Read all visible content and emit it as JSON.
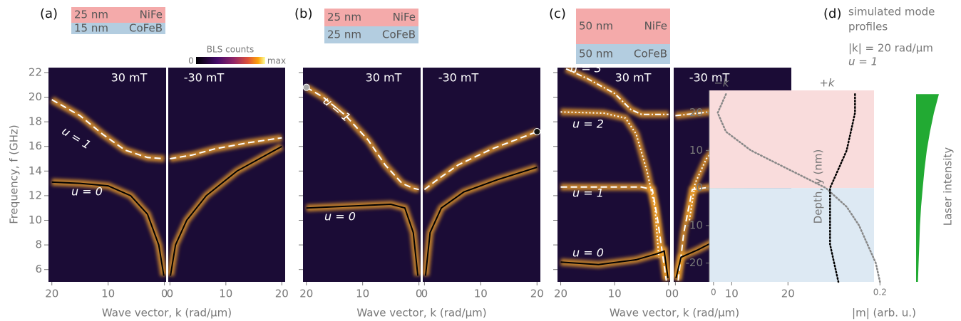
{
  "chart_data": [
    {
      "type": "line",
      "panel": "(a)",
      "layers": [
        {
          "thickness": "25 nm",
          "material": "NiFe",
          "color": "#f4aaaa"
        },
        {
          "thickness": "15 nm",
          "material": "CoFeB",
          "color": "#b3cde0"
        }
      ],
      "colorbar": {
        "title": "BLS counts",
        "low": "0",
        "high": "max"
      },
      "ylabel": "Frequency, f (GHz)",
      "xlabel": "Wave vector, k (rad/μm)",
      "ylim": [
        5,
        22.4
      ],
      "yticks": [
        6,
        8,
        10,
        12,
        14,
        16,
        18,
        20,
        22
      ],
      "ytick_labels": true,
      "subplots": [
        {
          "title": "30 mT",
          "xlim": [
            20.6,
            -0.3
          ],
          "xticks": [
            20,
            10,
            0
          ],
          "series": [
            {
              "name": "u = 1",
              "color": "#ffffff",
              "dash": "dashed",
              "x": [
                20,
                15,
                11,
                7,
                3,
                0
              ],
              "values": [
                19.8,
                18.5,
                17,
                15.7,
                15.1,
                15.0
              ]
            },
            {
              "name": "u = 0",
              "color": "#000000",
              "dash": "solid",
              "x": [
                20,
                15,
                10,
                6,
                3,
                1,
                0.1
              ],
              "values": [
                13.1,
                13.0,
                12.8,
                12.0,
                10.5,
                8,
                5.5
              ]
            }
          ]
        },
        {
          "title": "-30 mT",
          "xlim": [
            -0.3,
            20.6
          ],
          "xticks": [
            0,
            10,
            20
          ],
          "series": [
            {
              "color": "#ffffff",
              "dash": "dashed",
              "x": [
                0,
                4,
                8,
                14,
                20
              ],
              "values": [
                15.0,
                15.3,
                15.8,
                16.3,
                16.7
              ]
            },
            {
              "color": "#000000",
              "dash": "solid",
              "x": [
                0.1,
                1,
                3,
                6.5,
                12,
                20
              ],
              "values": [
                5.5,
                8,
                10,
                12,
                14,
                16
              ]
            }
          ]
        }
      ]
    },
    {
      "type": "line",
      "panel": "(b)",
      "layers": [
        {
          "thickness": "25 nm",
          "material": "NiFe",
          "color": "#f4aaaa"
        },
        {
          "thickness": "25 nm",
          "material": "CoFeB",
          "color": "#b3cde0"
        }
      ],
      "xlabel": "Wave vector, k (rad/μm)",
      "ylim": [
        5,
        22.4
      ],
      "yticks": [
        6,
        8,
        10,
        12,
        14,
        16,
        18,
        20,
        22
      ],
      "ytick_labels": false,
      "subplots": [
        {
          "title": "30 mT",
          "xlim": [
            20.6,
            -0.3
          ],
          "xticks": [
            20,
            10,
            0
          ],
          "series": [
            {
              "name": "u = 1",
              "color": "#ffffff",
              "dash": "dashed",
              "end_marker": "#aaaaaa",
              "x": [
                20,
                17,
                13,
                9,
                6,
                3,
                1,
                0
              ],
              "values": [
                20.8,
                20,
                18.5,
                16.5,
                14.5,
                13,
                12.6,
                12.5
              ]
            },
            {
              "name": "u = 0",
              "color": "#000000",
              "dash": "solid",
              "x": [
                20,
                15,
                10,
                5,
                2.5,
                1,
                0.2
              ],
              "values": [
                11.0,
                11.1,
                11.2,
                11.3,
                11.0,
                9,
                5.5
              ]
            }
          ]
        },
        {
          "title": "-30 mT",
          "xlim": [
            -0.3,
            20.6
          ],
          "xticks": [
            0,
            10,
            20
          ],
          "series": [
            {
              "color": "#ffffff",
              "dash": "dashed",
              "end_marker": "#111111",
              "x": [
                0,
                2,
                6,
                12,
                20
              ],
              "values": [
                12.5,
                13.2,
                14.5,
                15.8,
                17.2
              ]
            },
            {
              "color": "#000000",
              "dash": "solid",
              "x": [
                0.2,
                1,
                3,
                7,
                13,
                20
              ],
              "values": [
                5.5,
                9,
                11,
                12.3,
                13.3,
                14.3
              ]
            }
          ]
        }
      ]
    },
    {
      "type": "line",
      "panel": "(c)",
      "layers": [
        {
          "thickness": "50 nm",
          "material": "NiFe",
          "color": "#f4aaaa"
        },
        {
          "thickness": "50 nm",
          "material": "CoFeB",
          "color": "#b3cde0"
        }
      ],
      "xlabel": "Wave vector, k (rad/μm)",
      "ylim": [
        5,
        22.4
      ],
      "yticks": [
        6,
        8,
        10,
        12,
        14,
        16,
        18,
        20,
        22
      ],
      "ytick_labels": false,
      "subplots": [
        {
          "title": "30 mT",
          "xlim": [
            20.6,
            -0.3
          ],
          "xticks": [
            20,
            10,
            0
          ],
          "series": [
            {
              "name": "u = 3",
              "color": "#ffffff",
              "dash": "dashdot",
              "x": [
                19,
                15,
                10,
                7,
                5,
                0
              ],
              "values": [
                22.3,
                21.5,
                20.3,
                19.0,
                18.6,
                18.6
              ]
            },
            {
              "name": "u = 2",
              "color": "#ffffff",
              "dash": "dotted",
              "x": [
                20,
                12,
                8,
                6,
                4,
                2.5,
                1.8
              ],
              "values": [
                18.8,
                18.7,
                18.3,
                17,
                14,
                11,
                7
              ]
            },
            {
              "name": "u = 1",
              "color": "#ffffff",
              "dash": "dashed",
              "x": [
                20,
                10,
                5,
                3,
                2,
                0.7,
                0.4
              ],
              "values": [
                12.7,
                12.7,
                12.7,
                12.5,
                10,
                6,
                5.1
              ]
            },
            {
              "name": "u = 0",
              "color": "#000000",
              "dash": "solid",
              "x": [
                20,
                13,
                6,
                2,
                0.8,
                0.1
              ],
              "values": [
                6.6,
                6.4,
                6.8,
                7.3,
                7.5,
                5.3
              ]
            }
          ]
        },
        {
          "title": "-30 mT",
          "xlim": [
            -0.3,
            20.6
          ],
          "xticks": [
            0,
            10,
            20
          ],
          "series": [
            {
              "color": "#ffffff",
              "dash": "dashdot",
              "x": [
                0,
                6,
                13,
                20
              ],
              "values": [
                18.5,
                18.8,
                19.5,
                20.0
              ]
            },
            {
              "color": "#ffffff",
              "dash": "dotted",
              "x": [
                2.5,
                3.5,
                5.5,
                8,
                12,
                20
              ],
              "values": [
                10,
                13,
                15,
                16.3,
                16.6,
                16.5
              ]
            },
            {
              "color": "#ffffff",
              "dash": "dashed",
              "x": [
                0.5,
                1.5,
                3,
                8,
                20
              ],
              "values": [
                5.1,
                9,
                12.5,
                12.8,
                13.2
              ]
            },
            {
              "color": "#000000",
              "dash": "solid",
              "x": [
                0.1,
                1,
                4,
                10,
                20
              ],
              "values": [
                5.3,
                7,
                7.6,
                9,
                11
              ]
            }
          ]
        }
      ]
    },
    {
      "type": "profile",
      "panel": "(d)",
      "title": [
        "simulated mode",
        "profiles",
        "|k| = 20 rad/μm",
        "u = 1"
      ],
      "ylabel": "Depth, y (nm)",
      "xlabel": "|m| (arb. u.)",
      "ylim": [
        -25,
        26
      ],
      "yticks": [
        -20,
        -10,
        0,
        10,
        20
      ],
      "xlim": [
        -0.005,
        0.21
      ],
      "xticks": [
        0,
        0.2
      ],
      "regions": [
        "#f9dcdc",
        "#dde9f3"
      ],
      "depth": [
        25,
        20,
        15,
        10,
        5,
        0,
        -5,
        -10,
        -15,
        -20,
        -25
      ],
      "series": [
        {
          "name": "−k",
          "color": "#888888",
          "values": [
            0.015,
            0.005,
            0.015,
            0.045,
            0.09,
            0.135,
            0.16,
            0.175,
            0.185,
            0.195,
            0.2
          ]
        },
        {
          "name": "+k",
          "color": "#000000",
          "values": [
            0.17,
            0.17,
            0.165,
            0.16,
            0.15,
            0.14,
            0.14,
            0.14,
            0.14,
            0.145,
            0.15
          ]
        }
      ],
      "laser": {
        "name": "Laser intensity",
        "color": "#22aa33",
        "values": [
          1,
          0.78,
          0.61,
          0.47,
          0.37,
          0.29,
          0.22,
          0.17,
          0.14,
          0.11,
          0.08
        ]
      }
    }
  ]
}
